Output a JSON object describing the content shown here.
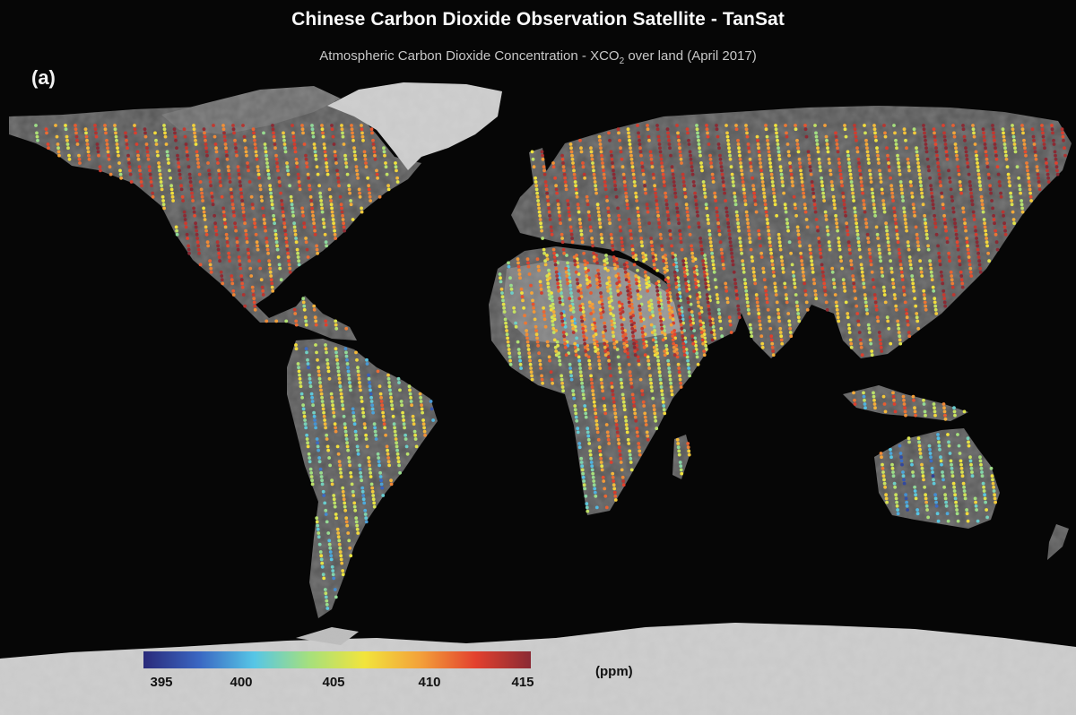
{
  "title": "Chinese Carbon Dioxide Observation Satellite - TanSat",
  "subtitle": {
    "before": "Atmospheric Carbon Dioxide Concentration - XCO",
    "subscript": "2",
    "after": " over land (April 2017)"
  },
  "panel_label": "(a)",
  "colorbar": {
    "ticks": [
      "395",
      "400",
      "405",
      "410",
      "415"
    ],
    "min": 395,
    "max": 415,
    "unit": "(ppm)",
    "colors": [
      "#2a2a7a",
      "#3a66c2",
      "#56c6e6",
      "#a6e07c",
      "#f2e43c",
      "#f3a13a",
      "#e3412e",
      "#8a2a34"
    ]
  },
  "background": "#060606",
  "land_color": "#5a5a5a",
  "ice_color": "#d4d4d4"
}
